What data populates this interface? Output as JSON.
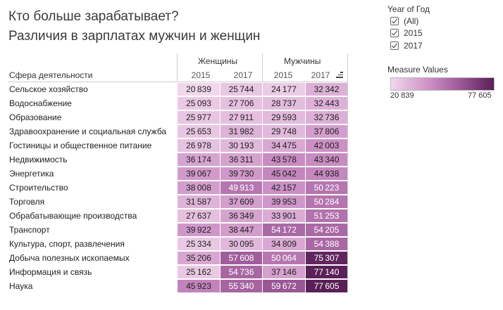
{
  "title_line1": "Кто больше зарабатывает?",
  "title_line2": "Различия в зарплатах мужчин и женщин",
  "table": {
    "row_header": "Сфера деятельности",
    "groups": [
      "Женщины",
      "Мужчины"
    ],
    "years": [
      "2015",
      "2017"
    ]
  },
  "filter": {
    "title": "Year of Год",
    "items": [
      {
        "label": "(All)",
        "checked": true
      },
      {
        "label": "2015",
        "checked": true
      },
      {
        "label": "2017",
        "checked": true
      }
    ]
  },
  "color_legend": {
    "title": "Measure Values",
    "min_label": "20 839",
    "max_label": "77 605",
    "color_min": "#f1d7ec",
    "color_max": "#5a1f56"
  },
  "chart_data": {
    "type": "heatmap",
    "color_range": [
      20839,
      77605
    ],
    "columns": [
      {
        "group": "Женщины",
        "year": "2015"
      },
      {
        "group": "Женщины",
        "year": "2017"
      },
      {
        "group": "Мужчины",
        "year": "2015"
      },
      {
        "group": "Мужчины",
        "year": "2017"
      }
    ],
    "rows": [
      {
        "label": "Сельское хозяйство",
        "values": [
          20839,
          25744,
          24177,
          32342
        ]
      },
      {
        "label": "Водоснабжение",
        "values": [
          25093,
          27706,
          28737,
          32443
        ]
      },
      {
        "label": "Образование",
        "values": [
          25977,
          27911,
          29593,
          32736
        ]
      },
      {
        "label": "Здравоохранение и социальная служба",
        "values": [
          25653,
          31982,
          29748,
          37806
        ]
      },
      {
        "label": "Гостиницы и общественное питание",
        "values": [
          26978,
          30193,
          34475,
          42003
        ]
      },
      {
        "label": "Недвижимость",
        "values": [
          36174,
          36311,
          43578,
          43340
        ]
      },
      {
        "label": "Энергетика",
        "values": [
          39067,
          39730,
          45042,
          44938
        ]
      },
      {
        "label": "Строительство",
        "values": [
          38008,
          49913,
          42157,
          50223
        ]
      },
      {
        "label": "Торговля",
        "values": [
          31587,
          37609,
          39953,
          50284
        ]
      },
      {
        "label": "Обрабатывающие производства",
        "values": [
          27637,
          36349,
          33901,
          51253
        ]
      },
      {
        "label": "Транспорт",
        "values": [
          39922,
          38447,
          54172,
          54205
        ]
      },
      {
        "label": "Культура, спорт, развлечения",
        "values": [
          25334,
          30095,
          34809,
          54388
        ]
      },
      {
        "label": "Добыча полезных ископаемых",
        "values": [
          35206,
          57608,
          50064,
          75307
        ]
      },
      {
        "label": "Информация и связь",
        "values": [
          25162,
          54736,
          37146,
          77140
        ]
      },
      {
        "label": "Наука",
        "values": [
          45923,
          55340,
          59672,
          77605
        ]
      }
    ]
  }
}
